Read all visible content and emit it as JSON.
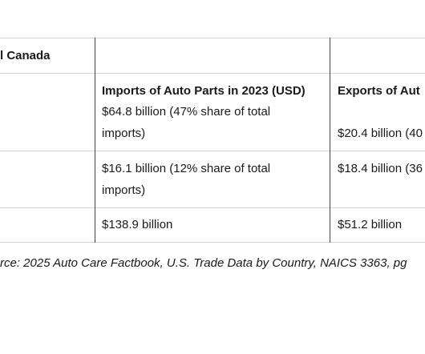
{
  "table": {
    "title_fragment": "l Canada",
    "headers": {
      "imports": "Imports of Auto Parts in 2023 (USD)",
      "exports": "Exports of Aut"
    },
    "rows": [
      {
        "imports_line1": "$64.8 billion (47% share of total",
        "imports_line2": "imports)",
        "exports": "$20.4 billion (40"
      },
      {
        "imports_line1": "$16.1 billion (12% share of total",
        "imports_line2": "imports)",
        "exports": "$18.4 billion (36"
      },
      {
        "imports_line1": "$138.9 billion",
        "exports": "$51.2 billion"
      }
    ]
  },
  "source": "rce: 2025 Auto Care Factbook, U.S. Trade Data by Country, NAICS 3363, pg"
}
